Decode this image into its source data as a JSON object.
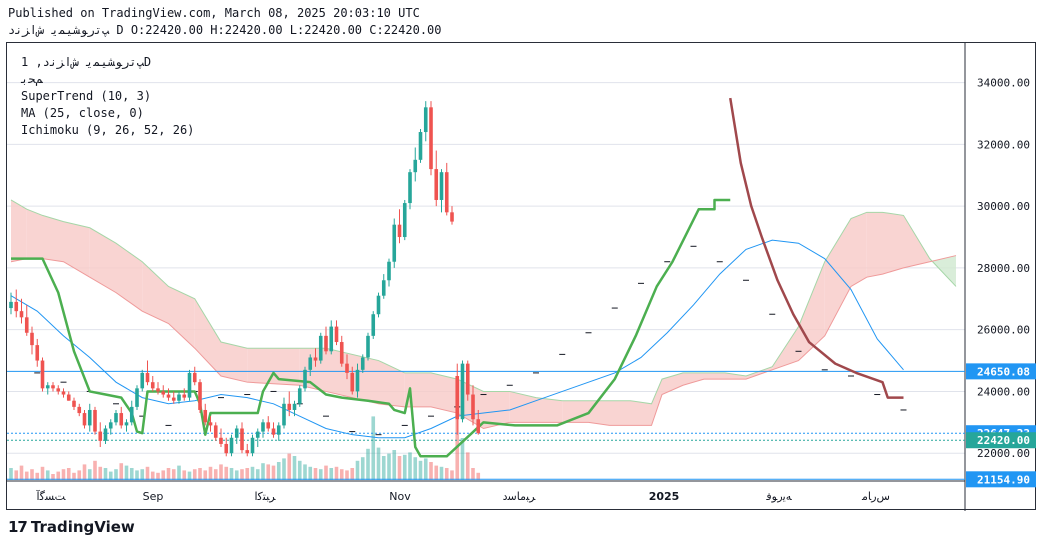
{
  "header": {
    "published": "Published on TradingView.com, March 08, 2025 20:03:10 UTC",
    "ohlc": "ﭗﺗﺭﻮﺸﯿﻤﯾ ﺵﺍﺰﻧﺩ D O:22420.00 H:22420.00 L:22420.00 C:22420.00"
  },
  "legend": {
    "symbol": "ﭗﺗﺭﻮﺸﯿﻤﯾ ﺵﺍﺰﻧﺩ, 1D",
    "exchange": "ﻢﺤﺑ",
    "supertrend": "SuperTrend (10, 3)",
    "ma": "MA (25, close, 0)",
    "ichimoku": "Ichimoku (9, 26, 52, 26)"
  },
  "brand": {
    "logo": "17",
    "name": "TradingView"
  },
  "colors": {
    "up": "#26a69a",
    "down": "#ef5350",
    "supertrend_up": "#4caf50",
    "supertrend_down": "#a0484c",
    "ma": "#2196f3",
    "cloud_bear": "#f8c9c7",
    "cloud_bull": "#cfe9cf",
    "price_line": "#2196f3",
    "grid": "#e0e3eb"
  },
  "chart_data": {
    "type": "candlestick",
    "x_ticks": [
      "ﺖﺴﮔﺁ",
      "Sep",
      "ﺮﺒﺘﮐﺍ",
      "Nov",
      "ﺮﺒﻣﺎﺳﺩ",
      "2025",
      "ﻪﯾﺭﻮﻓ",
      "ﺱﺭﺎﻣ"
    ],
    "y_ticks": [
      22000,
      24000,
      26000,
      28000,
      30000,
      32000,
      34000
    ],
    "y_tick_labels": [
      "22000.00",
      "24000.00",
      "26000.00",
      "28000.00",
      "30000.00",
      "32000.00",
      "34000.00"
    ],
    "ylim": [
      21100,
      34700
    ],
    "price_labels": [
      {
        "value": 24650.08,
        "text": "24650.08",
        "kind": "line"
      },
      {
        "value": 22647.23,
        "text": "22647.23",
        "kind": "level"
      },
      {
        "value": 22420.0,
        "text": "22420.00",
        "kind": "last"
      },
      {
        "value": 21154.9,
        "text": "21154.90",
        "kind": "line"
      }
    ],
    "ohlc": [
      [
        26700,
        27200,
        26500,
        26900
      ],
      [
        26900,
        27300,
        26400,
        26600
      ],
      [
        26600,
        27000,
        26200,
        26400
      ],
      [
        26400,
        26800,
        25800,
        25900
      ],
      [
        25900,
        26100,
        25200,
        25500
      ],
      [
        25500,
        25700,
        24800,
        25000
      ],
      [
        25000,
        25100,
        24000,
        24100
      ],
      [
        24100,
        24300,
        23900,
        24200
      ],
      [
        24200,
        24300,
        24000,
        24100
      ],
      [
        24100,
        24200,
        23900,
        24000
      ],
      [
        24000,
        24100,
        23800,
        23900
      ],
      [
        23900,
        24000,
        23700,
        23700
      ],
      [
        23700,
        23800,
        23400,
        23500
      ],
      [
        23500,
        23600,
        23200,
        23300
      ],
      [
        23300,
        23400,
        22800,
        22900
      ],
      [
        22900,
        23600,
        22700,
        23400
      ],
      [
        23400,
        23500,
        22600,
        22700
      ],
      [
        22700,
        23000,
        22200,
        22400
      ],
      [
        22400,
        22900,
        22300,
        22800
      ],
      [
        22800,
        23100,
        22600,
        23000
      ],
      [
        23000,
        23400,
        22900,
        23300
      ],
      [
        23300,
        23500,
        22800,
        22900
      ],
      [
        22900,
        23100,
        22700,
        23000
      ],
      [
        23000,
        23700,
        22900,
        23500
      ],
      [
        23500,
        24200,
        23400,
        24100
      ],
      [
        24100,
        24700,
        24000,
        24600
      ],
      [
        24600,
        25000,
        24200,
        24300
      ],
      [
        24300,
        24500,
        24000,
        24100
      ],
      [
        24100,
        24300,
        23900,
        24000
      ],
      [
        24000,
        24200,
        23800,
        23900
      ],
      [
        23900,
        24100,
        23700,
        23800
      ],
      [
        23800,
        24000,
        23600,
        23700
      ],
      [
        23700,
        24000,
        23600,
        23900
      ],
      [
        23900,
        24100,
        23700,
        23800
      ],
      [
        23800,
        24700,
        23700,
        24600
      ],
      [
        24600,
        24800,
        24200,
        24300
      ],
      [
        24300,
        24400,
        23300,
        23400
      ],
      [
        23400,
        23600,
        22900,
        23000
      ],
      [
        23000,
        23200,
        22700,
        22900
      ],
      [
        22900,
        23000,
        22400,
        22500
      ],
      [
        22500,
        22800,
        22200,
        22300
      ],
      [
        22300,
        22500,
        21900,
        22000
      ],
      [
        22000,
        22600,
        21900,
        22500
      ],
      [
        22500,
        22900,
        22300,
        22800
      ],
      [
        22800,
        23000,
        22000,
        22100
      ],
      [
        22100,
        22300,
        21900,
        22000
      ],
      [
        22000,
        22600,
        21900,
        22500
      ],
      [
        22500,
        22800,
        22200,
        22700
      ],
      [
        22700,
        23100,
        22500,
        23000
      ],
      [
        23000,
        23200,
        22700,
        22800
      ],
      [
        22800,
        23000,
        22500,
        22600
      ],
      [
        22600,
        23000,
        22400,
        22900
      ],
      [
        22900,
        23800,
        22800,
        23600
      ],
      [
        23600,
        24000,
        23200,
        23400
      ],
      [
        23400,
        23700,
        23200,
        23600
      ],
      [
        23600,
        24200,
        23500,
        24100
      ],
      [
        24100,
        24800,
        24000,
        24700
      ],
      [
        24700,
        25200,
        24500,
        25100
      ],
      [
        25100,
        25400,
        24800,
        25000
      ],
      [
        25000,
        25900,
        24900,
        25800
      ],
      [
        25800,
        26100,
        25200,
        25300
      ],
      [
        25300,
        26300,
        25200,
        26100
      ],
      [
        26100,
        26300,
        25500,
        25600
      ],
      [
        25600,
        25800,
        24800,
        24900
      ],
      [
        24900,
        25200,
        24400,
        24600
      ],
      [
        24600,
        24800,
        23900,
        24000
      ],
      [
        24000,
        24900,
        23800,
        24700
      ],
      [
        24700,
        25200,
        24600,
        25100
      ],
      [
        25100,
        25900,
        25000,
        25800
      ],
      [
        25800,
        26600,
        25700,
        26500
      ],
      [
        26500,
        27200,
        26400,
        27100
      ],
      [
        27100,
        27800,
        27000,
        27600
      ],
      [
        27600,
        28300,
        27400,
        28200
      ],
      [
        28200,
        29600,
        28000,
        29400
      ],
      [
        29400,
        29900,
        28800,
        29000
      ],
      [
        29000,
        30200,
        28900,
        30100
      ],
      [
        30100,
        31200,
        29900,
        31100
      ],
      [
        31100,
        31900,
        30800,
        31500
      ],
      [
        31500,
        32500,
        31400,
        32400
      ],
      [
        32400,
        33400,
        32100,
        33200
      ],
      [
        33200,
        33400,
        31000,
        31200
      ],
      [
        31200,
        31800,
        30000,
        30200
      ],
      [
        30200,
        31200,
        29800,
        31100
      ],
      [
        31100,
        31400,
        29700,
        29800
      ],
      [
        29800,
        30000,
        29400,
        29500
      ],
      [
        24500,
        24900,
        22600,
        23100
      ],
      [
        23100,
        25000,
        23000,
        24900
      ],
      [
        24900,
        25000,
        23700,
        23900
      ],
      [
        23900,
        24200,
        22900,
        23100
      ],
      [
        23100,
        23400,
        22600,
        22647
      ]
    ],
    "volume": [
      1,
      0.8,
      1.2,
      0.7,
      0.9,
      0.6,
      1.1,
      0.8,
      0.5,
      0.7,
      0.9,
      1.0,
      0.6,
      0.8,
      1.3,
      0.9,
      1.6,
      1.1,
      1.0,
      0.7,
      0.9,
      1.4,
      1.2,
      1.0,
      0.8,
      0.9,
      1.1,
      0.7,
      0.6,
      0.8,
      1.0,
      0.9,
      1.2,
      0.8,
      0.7,
      0.9,
      1.0,
      0.8,
      1.1,
      0.9,
      1.3,
      1.1,
      1.0,
      0.8,
      0.9,
      1.0,
      1.1,
      0.9,
      1.4,
      1.3,
      1.2,
      1.5,
      1.8,
      2.2,
      2.0,
      1.6,
      1.3,
      1.1,
      1.0,
      0.9,
      1.2,
      1.0,
      1.1,
      0.9,
      0.8,
      1.0,
      1.6,
      1.9,
      2.6,
      5.3,
      2.7,
      2.0,
      2.2,
      2.5,
      2.0,
      2.1,
      2.3,
      1.9,
      1.6,
      1.8,
      1.5,
      1.2,
      1.1,
      1.0,
      0.8,
      7.0,
      3.5,
      2.3,
      1.0,
      0.6
    ],
    "supertrend": [
      [
        0,
        28300
      ],
      [
        6,
        28300
      ],
      [
        9,
        27200
      ],
      [
        12,
        25300
      ],
      [
        15,
        24000
      ],
      [
        18,
        23900
      ],
      [
        21,
        23800
      ],
      [
        23,
        23300
      ],
      [
        24,
        22700
      ],
      [
        25,
        22650
      ],
      [
        26,
        24000
      ],
      [
        35,
        24000
      ],
      [
        36,
        23600
      ],
      [
        37,
        22600
      ],
      [
        38,
        23300
      ],
      [
        47,
        23300
      ],
      [
        48,
        24000
      ],
      [
        50,
        24600
      ],
      [
        51,
        24400
      ],
      [
        57,
        24300
      ],
      [
        60,
        23900
      ],
      [
        63,
        23800
      ],
      [
        68,
        23700
      ],
      [
        72,
        23600
      ],
      [
        73,
        23400
      ],
      [
        75,
        23300
      ],
      [
        76,
        24100
      ],
      [
        77,
        22200
      ],
      [
        78,
        21900
      ],
      [
        83,
        21900
      ],
      [
        90,
        23000
      ],
      [
        96,
        22900
      ],
      [
        104,
        22900
      ],
      [
        110,
        23300
      ],
      [
        115,
        24400
      ],
      [
        119,
        25800
      ],
      [
        123,
        27400
      ],
      [
        126,
        28200
      ],
      [
        131,
        29900
      ],
      [
        134,
        29900
      ],
      [
        134,
        30200
      ],
      [
        137,
        30200
      ]
    ],
    "supertrend_b": [
      [
        137,
        33500
      ],
      [
        139,
        31400
      ],
      [
        141,
        30000
      ],
      [
        143,
        29000
      ],
      [
        146,
        27600
      ],
      [
        149,
        26500
      ],
      [
        152,
        25600
      ],
      [
        157,
        24900
      ],
      [
        161,
        24600
      ],
      [
        166,
        24300
      ],
      [
        167,
        23800
      ],
      [
        170,
        23800
      ]
    ],
    "ma": [
      [
        0,
        27100
      ],
      [
        5,
        26600
      ],
      [
        10,
        25800
      ],
      [
        15,
        25100
      ],
      [
        20,
        24300
      ],
      [
        25,
        23800
      ],
      [
        30,
        23600
      ],
      [
        35,
        23700
      ],
      [
        40,
        23900
      ],
      [
        45,
        23800
      ],
      [
        50,
        23600
      ],
      [
        55,
        23200
      ],
      [
        60,
        22800
      ],
      [
        65,
        22600
      ],
      [
        70,
        22500
      ],
      [
        75,
        22500
      ],
      [
        80,
        22800
      ],
      [
        85,
        23200
      ],
      [
        90,
        23300
      ],
      [
        95,
        23400
      ],
      [
        100,
        23700
      ],
      [
        105,
        24000
      ],
      [
        110,
        24300
      ],
      [
        115,
        24600
      ],
      [
        120,
        25100
      ],
      [
        125,
        25900
      ],
      [
        130,
        26800
      ],
      [
        135,
        27800
      ],
      [
        140,
        28600
      ],
      [
        145,
        28900
      ],
      [
        150,
        28800
      ],
      [
        155,
        28300
      ],
      [
        160,
        27300
      ],
      [
        165,
        25700
      ],
      [
        170,
        24700
      ]
    ],
    "cloud": [
      [
        0,
        30200,
        28200
      ],
      [
        3,
        29900,
        28300
      ],
      [
        6,
        29700,
        28300
      ],
      [
        10,
        29500,
        28200
      ],
      [
        15,
        29300,
        27700
      ],
      [
        20,
        28800,
        27200
      ],
      [
        25,
        28200,
        26600
      ],
      [
        30,
        27400,
        26200
      ],
      [
        35,
        27000,
        25400
      ],
      [
        40,
        25600,
        24500
      ],
      [
        45,
        25400,
        24300
      ],
      [
        55,
        25400,
        24200
      ],
      [
        60,
        25400,
        24000
      ],
      [
        70,
        25000,
        23600
      ],
      [
        75,
        24600,
        23500
      ],
      [
        80,
        24600,
        23500
      ],
      [
        85,
        24400,
        23300
      ],
      [
        90,
        24000,
        22800
      ],
      [
        95,
        24000,
        23000
      ],
      [
        100,
        23800,
        23000
      ],
      [
        105,
        23700,
        23000
      ],
      [
        110,
        23700,
        23000
      ],
      [
        114,
        23700,
        22900
      ],
      [
        118,
        23700,
        22900
      ],
      [
        122,
        23600,
        22900
      ],
      [
        124,
        24400,
        23900
      ],
      [
        128,
        24600,
        24200
      ],
      [
        132,
        24600,
        24400
      ],
      [
        136,
        24600,
        24400
      ],
      [
        140,
        24500,
        24400
      ],
      [
        145,
        24800,
        24700
      ],
      [
        150,
        26100,
        25000
      ],
      [
        155,
        28200,
        25800
      ],
      [
        160,
        29600,
        27400
      ],
      [
        163,
        29800,
        27700
      ],
      [
        166,
        29800,
        27800
      ],
      [
        170,
        29700,
        28000
      ],
      [
        175,
        28300,
        28200
      ],
      [
        180,
        27400,
        28400
      ]
    ],
    "kijun_dots": [
      [
        5,
        24600
      ],
      [
        10,
        24300
      ],
      [
        15,
        24000
      ],
      [
        20,
        23600
      ],
      [
        25,
        23200
      ],
      [
        30,
        22900
      ],
      [
        35,
        24000
      ],
      [
        40,
        23800
      ],
      [
        45,
        23900
      ],
      [
        50,
        24000
      ],
      [
        55,
        23600
      ],
      [
        60,
        23200
      ],
      [
        65,
        22700
      ],
      [
        70,
        22600
      ],
      [
        75,
        22900
      ],
      [
        80,
        23200
      ],
      [
        85,
        23500
      ],
      [
        90,
        23900
      ],
      [
        95,
        24200
      ],
      [
        100,
        24600
      ],
      [
        105,
        25200
      ],
      [
        110,
        25900
      ],
      [
        115,
        26700
      ],
      [
        120,
        27500
      ],
      [
        125,
        28200
      ],
      [
        130,
        28700
      ],
      [
        135,
        28200
      ],
      [
        140,
        27600
      ],
      [
        145,
        26500
      ],
      [
        150,
        25300
      ],
      [
        155,
        24700
      ],
      [
        160,
        24500
      ],
      [
        165,
        23900
      ],
      [
        170,
        23400
      ]
    ]
  }
}
